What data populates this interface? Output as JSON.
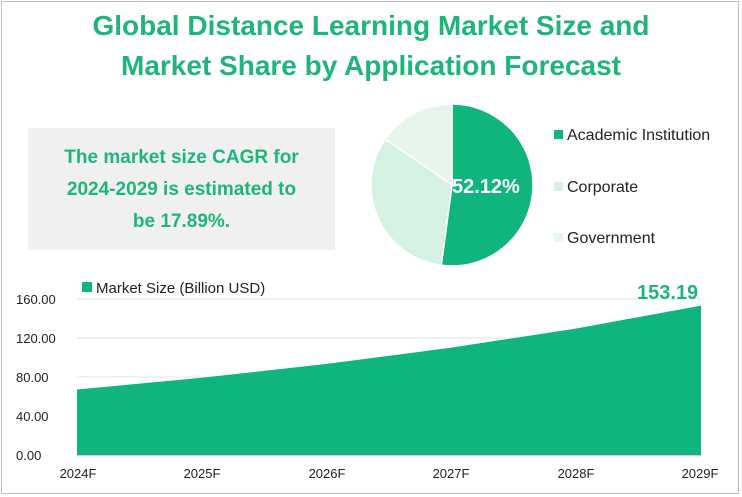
{
  "title_line1": "Global Distance Learning Market Size and",
  "title_line2": "Market Share by Application Forecast",
  "cagr": {
    "line1": "The market size CAGR for",
    "line2": "2024-2029 is estimated to",
    "line3": "be 17.89%."
  },
  "colors": {
    "accent": "#1fb57a",
    "area": "#10b57c"
  },
  "chart_data": [
    {
      "type": "pie",
      "slices": [
        {
          "label": "Academic Institution",
          "value": 52.12,
          "color": "#10b57c"
        },
        {
          "label": "Corporate",
          "value": 32.5,
          "color": "#d4f1e2"
        },
        {
          "label": "Government",
          "value": 15.38,
          "color": "#e6f6ed"
        }
      ],
      "data_label": "52.12%",
      "legend": "right"
    },
    {
      "type": "area",
      "categories": [
        "2024F",
        "2025F",
        "2026F",
        "2027F",
        "2028F",
        "2029F"
      ],
      "series": [
        {
          "name": "Market Size (Billion USD)",
          "values": [
            67.2,
            79.2,
            93.4,
            110.1,
            129.8,
            153.19
          ]
        }
      ],
      "ylim": [
        0,
        160
      ],
      "yticks": [
        "0.00",
        "40.00",
        "80.00",
        "120.00",
        "160.00"
      ],
      "data_label": "153.19",
      "grid": true,
      "legend": "top-left"
    }
  ]
}
